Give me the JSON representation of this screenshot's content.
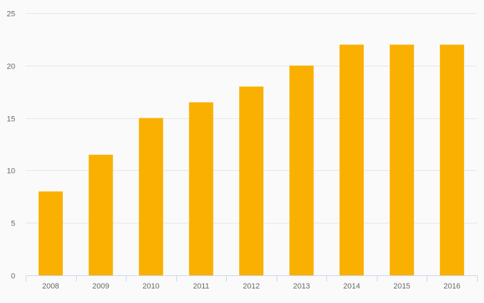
{
  "chart_data": {
    "type": "bar",
    "categories": [
      "2008",
      "2009",
      "2010",
      "2011",
      "2012",
      "2013",
      "2014",
      "2015",
      "2016"
    ],
    "series": [
      {
        "values": [
          8,
          11.5,
          15,
          16.5,
          18,
          20,
          22,
          22,
          22
        ]
      }
    ],
    "title": "",
    "xlabel": "",
    "ylabel": "",
    "ylim": [
      0,
      25
    ],
    "yticks": [
      "0",
      "5",
      "10",
      "15",
      "20",
      "25"
    ],
    "grid": true,
    "legend": "none",
    "colors": {
      "bar": "#f9b000",
      "grid": "#e6e6e6",
      "axis": "#ccd6eb",
      "text": "#666666",
      "background": "#fafafa"
    }
  }
}
